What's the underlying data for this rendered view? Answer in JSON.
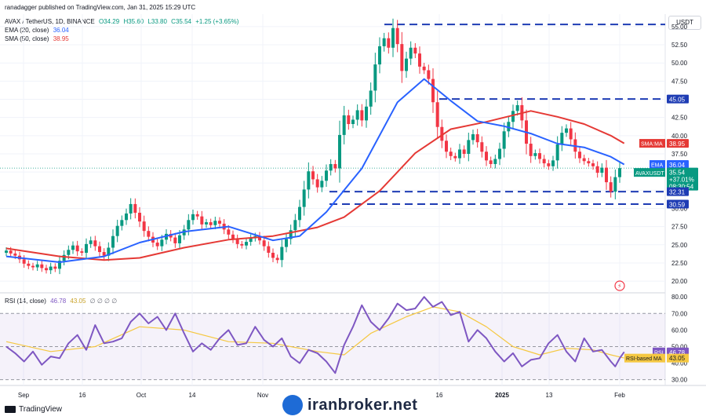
{
  "header": {
    "publisher": "ranadagger published on TradingView.com, Jan 31, 2025 15:29 UTC",
    "symbol": "AVAX / TetherUS, 1D, BINANCE",
    "ohlc": {
      "o": "O34.29",
      "h": "H35.60",
      "l": "L33.80",
      "c": "C35.54",
      "chg": "+1.25 (+3.65%)"
    },
    "ema_label": "EMA (20, close)",
    "ema_value": "36.04",
    "sma_label": "SMA (50, close)",
    "sma_value": "38.95",
    "rsi_label": "RSI (14, close)",
    "rsi_value": "46.78",
    "rsi_ma_value": "43.05",
    "rsi_extra": "∅ ∅ ∅ ∅"
  },
  "currency": "USDT",
  "branding": {
    "tradingview": "TradingView",
    "watermark": "iranbroker.net"
  },
  "colors": {
    "up": "#089981",
    "down": "#f23645",
    "ema": "#2962ff",
    "sma": "#e53935",
    "rsi": "#7e57c2",
    "rsi_ma": "#f5c842",
    "level": "#1e3cb4"
  },
  "chart_data": [
    {
      "type": "candlestick",
      "title": "AVAX / TetherUS, 1D, BINANCE",
      "x_ticks": [
        "Sep",
        "16",
        "Oct",
        "14",
        "Nov",
        "16",
        "2025",
        "13",
        "Feb"
      ],
      "y_ticks": [
        "55.00",
        "52.50",
        "50.00",
        "47.50",
        "45.00",
        "42.50",
        "40.00",
        "37.50",
        "35.00",
        "32.50",
        "30.00",
        "27.50",
        "25.00",
        "22.50",
        "20.00"
      ],
      "ylim": [
        18.5,
        56.5
      ],
      "grid": true,
      "horizontal_levels": [
        55.3,
        45.05,
        32.31,
        30.59
      ],
      "price_labels": [
        {
          "label": "45.05",
          "value": 45.05,
          "color": "#1e3cb4"
        },
        {
          "label": "SMA:MA 38.95",
          "value": 38.95,
          "color": "#e53935"
        },
        {
          "label": "EMA 36.04",
          "value": 36.04,
          "color": "#2962ff"
        },
        {
          "label": "AVAXUSDT 35.54 +37.01% 08:30:54",
          "value": 35.54,
          "color": "#089981"
        },
        {
          "label": "32.31",
          "value": 32.31,
          "color": "#1e3cb4"
        },
        {
          "label": "30.59",
          "value": 30.59,
          "color": "#1e3cb4"
        }
      ],
      "close": [
        24.2,
        23.8,
        23.5,
        23.0,
        22.4,
        22.1,
        21.9,
        22.3,
        21.8,
        21.5,
        22.0,
        21.7,
        22.8,
        23.6,
        24.3,
        24.9,
        24.1,
        23.9,
        25.1,
        25.6,
        24.8,
        24.0,
        23.5,
        24.6,
        26.2,
        27.6,
        28.4,
        29.3,
        30.6,
        29.4,
        28.2,
        26.9,
        26.1,
        25.3,
        24.8,
        25.7,
        26.5,
        26.0,
        25.2,
        26.3,
        27.1,
        28.4,
        29.2,
        28.9,
        27.8,
        28.1,
        27.7,
        28.3,
        27.9,
        27.1,
        26.4,
        25.8,
        25.1,
        24.9,
        25.4,
        25.9,
        26.2,
        25.6,
        24.8,
        23.9,
        23.2,
        22.9,
        24.7,
        25.8,
        27.0,
        28.4,
        30.2,
        32.6,
        35.1,
        34.0,
        32.9,
        33.8,
        35.2,
        36.1,
        35.5,
        40.1,
        42.8,
        41.6,
        42.2,
        43.5,
        42.1,
        44.0,
        46.2,
        49.8,
        52.3,
        53.4,
        52.1,
        54.8,
        52.6,
        48.9,
        50.6,
        52.1,
        51.3,
        49.5,
        49.0,
        47.8,
        44.6,
        41.2,
        39.3,
        37.8,
        37.2,
        36.9,
        38.1,
        37.5,
        39.4,
        40.2,
        39.1,
        37.8,
        36.6,
        36.1,
        36.8,
        38.2,
        40.6,
        41.9,
        43.4,
        44.2,
        42.1,
        38.9,
        37.2,
        37.6,
        36.8,
        36.2,
        35.8,
        36.6,
        38.8,
        40.4,
        41.0,
        39.5,
        37.8,
        36.9,
        36.5,
        36.2,
        35.8,
        34.9,
        35.6,
        33.6,
        32.3,
        34.3,
        35.54
      ],
      "series": [
        {
          "name": "EMA (20, close)",
          "last": 36.04,
          "points": [
            [
              0,
              23.4
            ],
            [
              12,
              22.6
            ],
            [
              22,
              23.4
            ],
            [
              30,
              25.3
            ],
            [
              40,
              26.8
            ],
            [
              50,
              27.5
            ],
            [
              60,
              25.6
            ],
            [
              66,
              26.2
            ],
            [
              72,
              29.5
            ],
            [
              80,
              35.5
            ],
            [
              88,
              44.6
            ],
            [
              94,
              47.8
            ],
            [
              100,
              44.8
            ],
            [
              106,
              42.0
            ],
            [
              112,
              41.3
            ],
            [
              118,
              40.3
            ],
            [
              124,
              38.9
            ],
            [
              130,
              38.4
            ],
            [
              136,
              37.1
            ],
            [
              139,
              36.04
            ]
          ]
        },
        {
          "name": "SMA (50, close)",
          "last": 38.95,
          "points": [
            [
              0,
              24.5
            ],
            [
              12,
              23.4
            ],
            [
              22,
              22.9
            ],
            [
              30,
              23.2
            ],
            [
              40,
              24.6
            ],
            [
              50,
              25.7
            ],
            [
              60,
              26.2
            ],
            [
              70,
              27.4
            ],
            [
              76,
              28.8
            ],
            [
              84,
              32.4
            ],
            [
              92,
              37.6
            ],
            [
              100,
              40.9
            ],
            [
              108,
              41.9
            ],
            [
              118,
              43.4
            ],
            [
              124,
              42.6
            ],
            [
              130,
              41.6
            ],
            [
              136,
              40.0
            ],
            [
              139,
              38.95
            ]
          ]
        }
      ]
    },
    {
      "type": "line",
      "title": "RSI (14, close)",
      "y_ticks": [
        "80.00",
        "70.00",
        "60.00",
        "50.00",
        "40.00",
        "30.00"
      ],
      "ylim": [
        27,
        82
      ],
      "overbought": 70,
      "oversold": 30,
      "series": [
        {
          "name": "RSI",
          "last": 46.78,
          "points": [
            [
              0,
              50
            ],
            [
              2,
              46
            ],
            [
              4,
              41
            ],
            [
              6,
              47
            ],
            [
              8,
              39
            ],
            [
              10,
              44
            ],
            [
              12,
              43
            ],
            [
              14,
              52
            ],
            [
              16,
              57
            ],
            [
              18,
              48
            ],
            [
              20,
              63
            ],
            [
              22,
              52
            ],
            [
              24,
              53
            ],
            [
              26,
              55
            ],
            [
              28,
              65
            ],
            [
              30,
              70
            ],
            [
              32,
              64
            ],
            [
              34,
              68
            ],
            [
              36,
              60
            ],
            [
              38,
              70
            ],
            [
              40,
              58
            ],
            [
              42,
              47
            ],
            [
              44,
              52
            ],
            [
              46,
              48
            ],
            [
              48,
              55
            ],
            [
              50,
              60
            ],
            [
              52,
              51
            ],
            [
              54,
              52
            ],
            [
              56,
              62
            ],
            [
              58,
              54
            ],
            [
              60,
              50
            ],
            [
              62,
              55
            ],
            [
              64,
              44
            ],
            [
              66,
              40
            ],
            [
              68,
              48
            ],
            [
              70,
              46
            ],
            [
              72,
              41
            ],
            [
              74,
              34
            ],
            [
              76,
              51
            ],
            [
              78,
              62
            ],
            [
              80,
              75
            ],
            [
              82,
              65
            ],
            [
              84,
              60
            ],
            [
              86,
              67
            ],
            [
              88,
              76
            ],
            [
              90,
              72
            ],
            [
              92,
              73
            ],
            [
              94,
              80
            ],
            [
              96,
              74
            ],
            [
              98,
              77
            ],
            [
              100,
              69
            ],
            [
              102,
              71
            ],
            [
              104,
              53
            ],
            [
              106,
              60
            ],
            [
              108,
              55
            ],
            [
              110,
              47
            ],
            [
              112,
              41
            ],
            [
              114,
              46
            ],
            [
              116,
              38
            ],
            [
              118,
              42
            ],
            [
              120,
              43
            ],
            [
              122,
              52
            ],
            [
              124,
              57
            ],
            [
              126,
              47
            ],
            [
              128,
              41
            ],
            [
              130,
              55
            ],
            [
              132,
              47
            ],
            [
              134,
              48
            ],
            [
              136,
              41
            ],
            [
              137,
              38
            ],
            [
              138,
              43
            ],
            [
              139,
              46.78
            ]
          ]
        },
        {
          "name": "RSI-based MA",
          "last": 43.05,
          "points": [
            [
              0,
              53
            ],
            [
              10,
              47
            ],
            [
              20,
              50
            ],
            [
              30,
              62
            ],
            [
              40,
              60
            ],
            [
              50,
              53
            ],
            [
              60,
              52
            ],
            [
              70,
              47
            ],
            [
              76,
              45
            ],
            [
              82,
              58
            ],
            [
              90,
              68
            ],
            [
              96,
              74
            ],
            [
              102,
              71
            ],
            [
              108,
              62
            ],
            [
              114,
              50
            ],
            [
              120,
              45
            ],
            [
              126,
              49
            ],
            [
              132,
              48
            ],
            [
              136,
              45
            ],
            [
              139,
              43.05
            ]
          ]
        }
      ]
    }
  ]
}
